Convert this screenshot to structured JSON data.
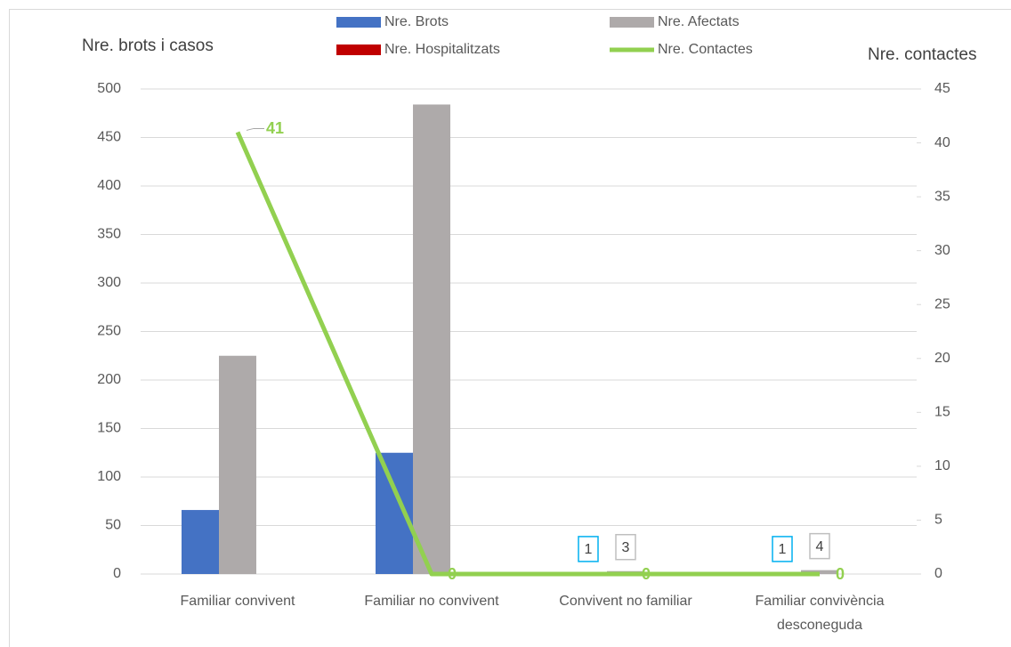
{
  "chart_data": {
    "type": "bar_line",
    "y_label": "Nre. brots i casos",
    "y2_label": "Nre. contactes",
    "categories": [
      "Familiar convivent",
      "Familiar no convivent",
      "Convivent no familiar",
      "Familiar convivència desconeguda"
    ],
    "series": [
      {
        "name": "Nre. Brots",
        "color": "#4472c4",
        "type": "bar",
        "values": [
          66,
          125,
          1,
          1
        ],
        "value_labels": [
          null,
          null,
          "1",
          "1"
        ],
        "label_box": "#00b0f0"
      },
      {
        "name": "Nre. Afectats",
        "color": "#aeaaaa",
        "type": "bar",
        "values": [
          225,
          484,
          3,
          4
        ],
        "value_labels": [
          null,
          null,
          "3",
          "4"
        ],
        "label_box": "#bfbfbf"
      },
      {
        "name": "Nre. Hospitalitzats",
        "color": "#c00000",
        "type": "bar",
        "values": [
          0,
          0,
          0,
          0
        ]
      },
      {
        "name": "Nre.  Contactes",
        "color": "#92d050",
        "type": "line",
        "axis": "y2",
        "values": [
          41,
          0,
          0,
          0
        ],
        "data_labels": true
      }
    ],
    "ylim": [
      0,
      500
    ],
    "yticks": [
      0,
      50,
      100,
      150,
      200,
      250,
      300,
      350,
      400,
      450,
      500
    ],
    "y2lim": [
      0,
      45
    ],
    "y2ticks": [
      0,
      5,
      10,
      15,
      20,
      25,
      30,
      35,
      40,
      45
    ],
    "grid": true,
    "legend": "top"
  }
}
